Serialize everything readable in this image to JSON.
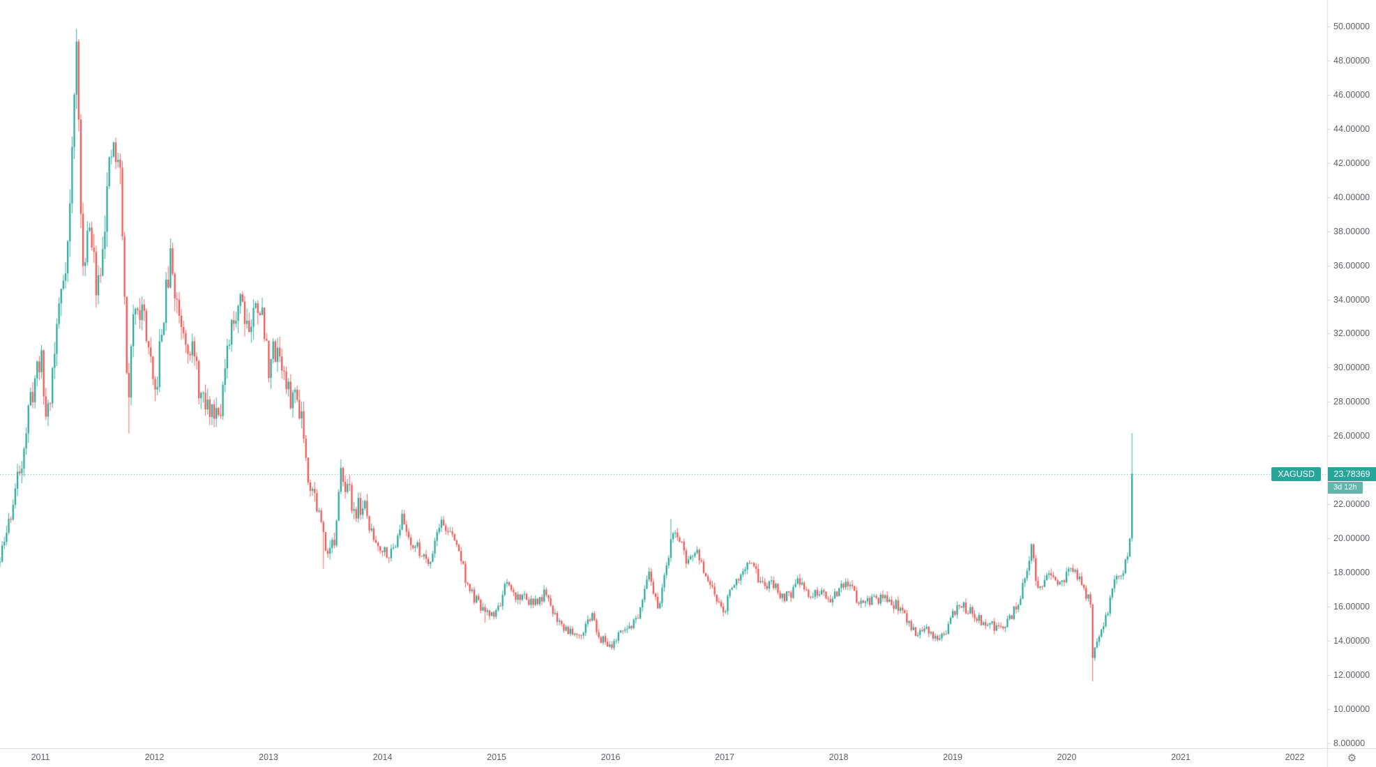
{
  "style": {
    "up_color": "#26a69a",
    "down_color": "#ef5350",
    "countdown_bg": "#63b6ae",
    "axis_text": "#5d606b",
    "axis_line": "#d7dade",
    "icon_color": "#787b86",
    "background": "#ffffff"
  },
  "icons": {
    "settings_gear": "⚙"
  },
  "flags": {
    "symbol": "XAGUSD",
    "last_price_text": "23.78369",
    "countdown": "3d 12h"
  },
  "chart_data": {
    "type": "candlestick",
    "title": "",
    "symbol": "XAGUSD",
    "last_price": 23.78369,
    "countdown": "3d 12h",
    "grid": false,
    "legend_position": "none",
    "y_axis": {
      "side": "right",
      "tick_decimals": 5,
      "ticks": [
        8,
        10,
        12,
        14,
        16,
        18,
        20,
        22,
        24,
        26,
        28,
        30,
        32,
        34,
        36,
        38,
        40,
        42,
        44,
        46,
        48,
        50
      ],
      "range_top": 51.55,
      "range_bottom": 7.71
    },
    "x_axis": {
      "side": "bottom",
      "ticks": [
        2011,
        2012,
        2013,
        2014,
        2015,
        2016,
        2017,
        2018,
        2019,
        2020,
        2021,
        2022
      ],
      "range": [
        2010.645,
        2022.284
      ]
    },
    "series_start": 2010.645,
    "series_end": 2020.575,
    "candles_per_year": 52.18,
    "seed": 11,
    "vol_early": 0.03,
    "vol_late": 0.02,
    "wick_frac": 0.8,
    "high_vol_until": 2013.9,
    "clamp_high": 49.85,
    "clamp_low": 11.6,
    "anchors": [
      [
        2010.645,
        18.6
      ],
      [
        2010.75,
        21.8
      ],
      [
        2010.833,
        24.6
      ],
      [
        2010.917,
        28.2
      ],
      [
        2011.0,
        30.9
      ],
      [
        2011.045,
        27.2
      ],
      [
        2011.083,
        28.3
      ],
      [
        2011.167,
        33.9
      ],
      [
        2011.25,
        37.9
      ],
      [
        2011.313,
        48.9
      ],
      [
        2011.33,
        47.5
      ],
      [
        2011.36,
        35.6
      ],
      [
        2011.417,
        38.3
      ],
      [
        2011.5,
        34.8
      ],
      [
        2011.583,
        40.1
      ],
      [
        2011.645,
        43.3
      ],
      [
        2011.667,
        41.7
      ],
      [
        2011.7,
        41.5
      ],
      [
        2011.73,
        36.0
      ],
      [
        2011.75,
        30.0
      ],
      [
        2011.77,
        28.3
      ],
      [
        2011.833,
        34.3
      ],
      [
        2011.917,
        32.8
      ],
      [
        2012.0,
        27.9
      ],
      [
        2012.083,
        33.3
      ],
      [
        2012.15,
        36.8
      ],
      [
        2012.167,
        34.6
      ],
      [
        2012.25,
        32.5
      ],
      [
        2012.333,
        31.0
      ],
      [
        2012.417,
        27.9
      ],
      [
        2012.5,
        27.5
      ],
      [
        2012.583,
        28.0
      ],
      [
        2012.667,
        31.7
      ],
      [
        2012.75,
        34.6
      ],
      [
        2012.833,
        32.3
      ],
      [
        2012.917,
        34.2
      ],
      [
        2013.0,
        30.2
      ],
      [
        2013.083,
        31.4
      ],
      [
        2013.167,
        28.4
      ],
      [
        2013.25,
        28.3
      ],
      [
        2013.3,
        27.2
      ],
      [
        2013.333,
        24.2
      ],
      [
        2013.417,
        22.2
      ],
      [
        2013.5,
        19.6
      ],
      [
        2013.583,
        19.7
      ],
      [
        2013.645,
        24.4
      ],
      [
        2013.667,
        23.5
      ],
      [
        2013.75,
        21.7
      ],
      [
        2013.833,
        21.9
      ],
      [
        2013.917,
        20.0
      ],
      [
        2014.0,
        19.4
      ],
      [
        2014.083,
        19.1
      ],
      [
        2014.167,
        21.2
      ],
      [
        2014.25,
        19.8
      ],
      [
        2014.333,
        19.2
      ],
      [
        2014.417,
        18.7
      ],
      [
        2014.5,
        21.0
      ],
      [
        2014.583,
        20.4
      ],
      [
        2014.667,
        19.4
      ],
      [
        2014.75,
        17.1
      ],
      [
        2014.833,
        16.2
      ],
      [
        2014.917,
        15.5
      ],
      [
        2015.0,
        15.7
      ],
      [
        2015.083,
        17.2
      ],
      [
        2015.167,
        16.6
      ],
      [
        2015.25,
        16.6
      ],
      [
        2015.333,
        16.1
      ],
      [
        2015.417,
        16.7
      ],
      [
        2015.5,
        15.7
      ],
      [
        2015.583,
        14.8
      ],
      [
        2015.667,
        14.6
      ],
      [
        2015.75,
        14.5
      ],
      [
        2015.833,
        15.5
      ],
      [
        2015.917,
        14.1
      ],
      [
        2016.0,
        13.8
      ],
      [
        2016.083,
        14.3
      ],
      [
        2016.167,
        14.9
      ],
      [
        2016.25,
        15.4
      ],
      [
        2016.333,
        17.8
      ],
      [
        2016.417,
        16.0
      ],
      [
        2016.5,
        18.4
      ],
      [
        2016.54,
        20.6
      ],
      [
        2016.583,
        20.3
      ],
      [
        2016.667,
        18.6
      ],
      [
        2016.75,
        19.2
      ],
      [
        2016.833,
        17.8
      ],
      [
        2016.917,
        16.5
      ],
      [
        2017.0,
        15.9
      ],
      [
        2017.083,
        17.5
      ],
      [
        2017.167,
        18.3
      ],
      [
        2017.25,
        18.2
      ],
      [
        2017.333,
        17.2
      ],
      [
        2017.417,
        17.3
      ],
      [
        2017.5,
        16.6
      ],
      [
        2017.583,
        16.8
      ],
      [
        2017.667,
        17.6
      ],
      [
        2017.75,
        16.6
      ],
      [
        2017.833,
        16.7
      ],
      [
        2017.917,
        16.5
      ],
      [
        2018.0,
        16.9
      ],
      [
        2018.083,
        17.3
      ],
      [
        2018.167,
        16.4
      ],
      [
        2018.25,
        16.3
      ],
      [
        2018.333,
        16.4
      ],
      [
        2018.417,
        16.4
      ],
      [
        2018.5,
        16.1
      ],
      [
        2018.583,
        15.5
      ],
      [
        2018.667,
        14.5
      ],
      [
        2018.75,
        14.7
      ],
      [
        2018.833,
        14.3
      ],
      [
        2018.917,
        14.2
      ],
      [
        2019.0,
        15.5
      ],
      [
        2019.083,
        16.1
      ],
      [
        2019.167,
        15.6
      ],
      [
        2019.25,
        15.1
      ],
      [
        2019.333,
        15.0
      ],
      [
        2019.417,
        14.6
      ],
      [
        2019.5,
        15.3
      ],
      [
        2019.583,
        16.3
      ],
      [
        2019.667,
        18.4
      ],
      [
        2019.69,
        19.3
      ],
      [
        2019.75,
        17.0
      ],
      [
        2019.833,
        18.1
      ],
      [
        2019.917,
        17.0
      ],
      [
        2020.0,
        17.9
      ],
      [
        2020.083,
        18.0
      ],
      [
        2020.167,
        16.7
      ],
      [
        2020.21,
        16.4
      ],
      [
        2020.23,
        12.2
      ],
      [
        2020.25,
        14.0
      ],
      [
        2020.333,
        15.0
      ],
      [
        2020.417,
        17.5
      ],
      [
        2020.5,
        18.2
      ],
      [
        2020.53,
        19.0
      ],
      [
        2020.556,
        20.0
      ],
      [
        2020.575,
        23.78369
      ]
    ],
    "wick_overrides": [
      {
        "t": 2011.313,
        "high": 49.82
      },
      {
        "t": 2011.77,
        "low": 26.15
      },
      {
        "t": 2012.14,
        "high": 37.58
      },
      {
        "t": 2013.49,
        "low": 18.22
      },
      {
        "t": 2014.9,
        "low": 15.06
      },
      {
        "t": 2015.99,
        "low": 13.65
      },
      {
        "t": 2016.53,
        "high": 21.13
      },
      {
        "t": 2019.69,
        "high": 19.65
      },
      {
        "t": 2020.23,
        "low": 11.63
      },
      {
        "t": 2020.575,
        "high": 26.18
      }
    ]
  }
}
